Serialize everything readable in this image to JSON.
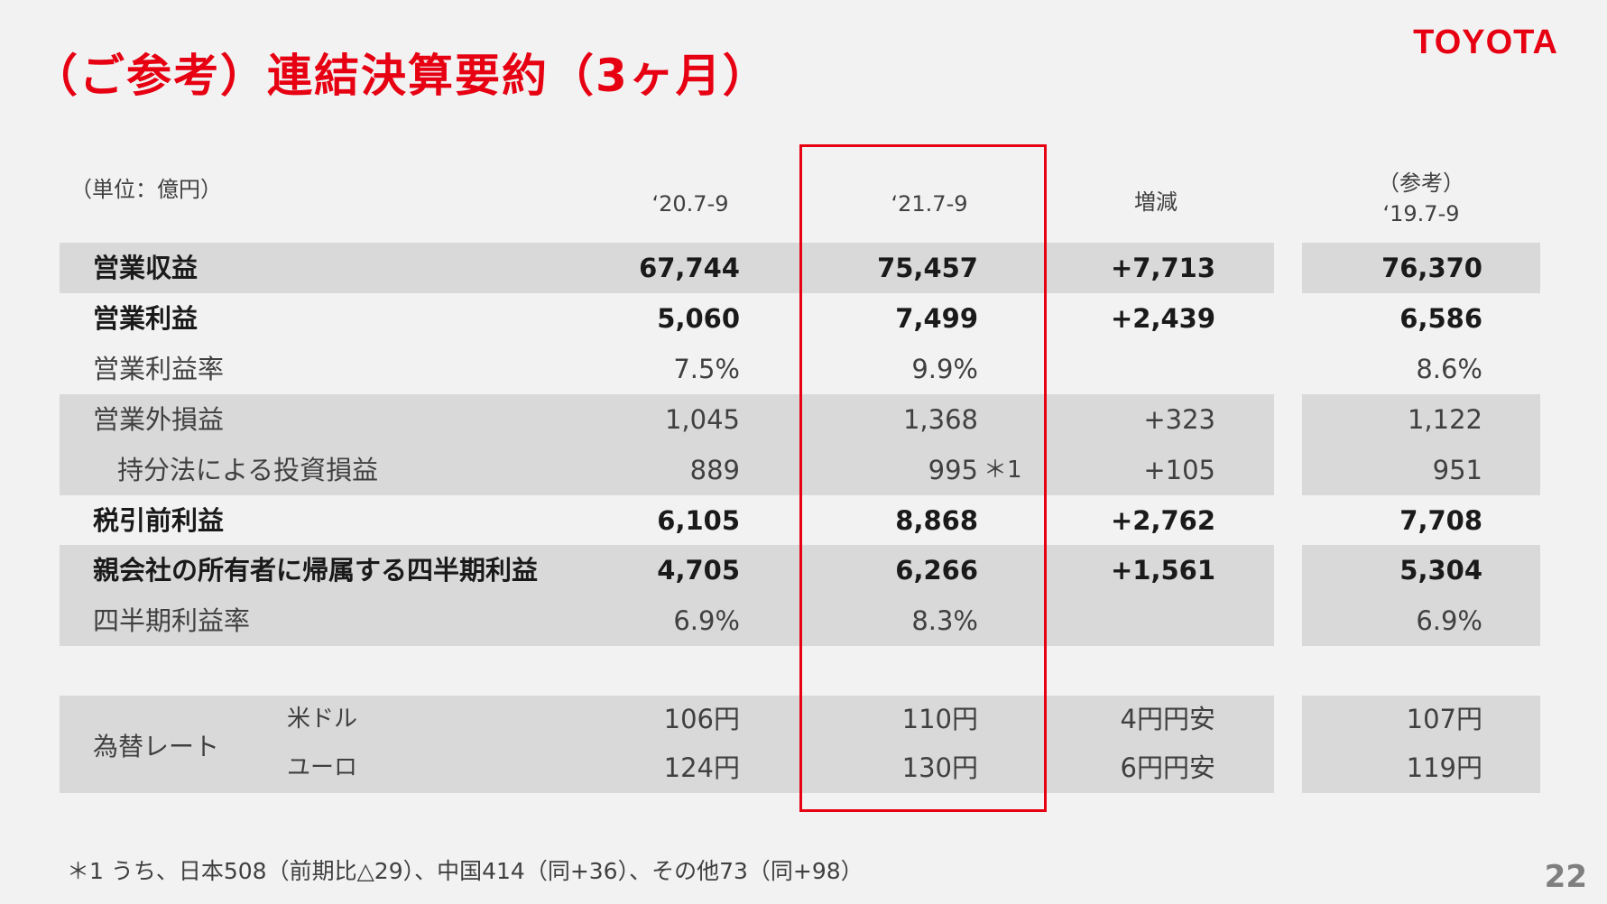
{
  "title": "（ご参考）連結決算要約（3ヶ月）",
  "logo": "TOYOTA",
  "unit": "（単位：億円）",
  "headers": {
    "c1": "‘20.7-9",
    "c2": "‘21.7-9",
    "c3": "増減",
    "c4_top": "（参考）",
    "c4_bottom": "‘19.7-9"
  },
  "rows": [
    {
      "label": "営業収益",
      "c1": "67,744",
      "c2": "75,457",
      "c3": "+7,713",
      "c4": "76,370"
    },
    {
      "label": "営業利益",
      "c1": "5,060",
      "c2": "7,499",
      "c3": "+2,439",
      "c4": "6,586"
    },
    {
      "label": "営業利益率",
      "c1": "7.5%",
      "c2": "9.9%",
      "c3": "",
      "c4": "8.6%"
    },
    {
      "label": "営業外損益",
      "c1": "1,045",
      "c2": "1,368",
      "c3": "+323",
      "c4": "1,122"
    },
    {
      "label": "持分法による投資損益",
      "c1": "889",
      "c2": "995",
      "c2_note": "＊1",
      "c3": "+105",
      "c4": "951"
    },
    {
      "label": "税引前利益",
      "c1": "6,105",
      "c2": "8,868",
      "c3": "+2,762",
      "c4": "7,708"
    },
    {
      "label": "親会社の所有者に帰属する四半期利益",
      "c1": "4,705",
      "c2": "6,266",
      "c3": "+1,561",
      "c4": "5,304"
    },
    {
      "label": "四半期利益率",
      "c1": "6.9%",
      "c2": "8.3%",
      "c3": "",
      "c4": "6.9%"
    }
  ],
  "fx": {
    "label": "為替レート",
    "rows": [
      {
        "currency": "米ドル",
        "c1": "106円",
        "c2": "110円",
        "c3": "4円円安",
        "c4": "107円"
      },
      {
        "currency": "ユーロ",
        "c1": "124円",
        "c2": "130円",
        "c3": "6円円安",
        "c4": "119円"
      }
    ]
  },
  "footnote": "＊1 うち、日本508（前期比△29）、中国414（同+36）、その他73（同+98）",
  "page_number": "22",
  "colors": {
    "accent": "#e60012",
    "band": "#d9d9d9"
  }
}
